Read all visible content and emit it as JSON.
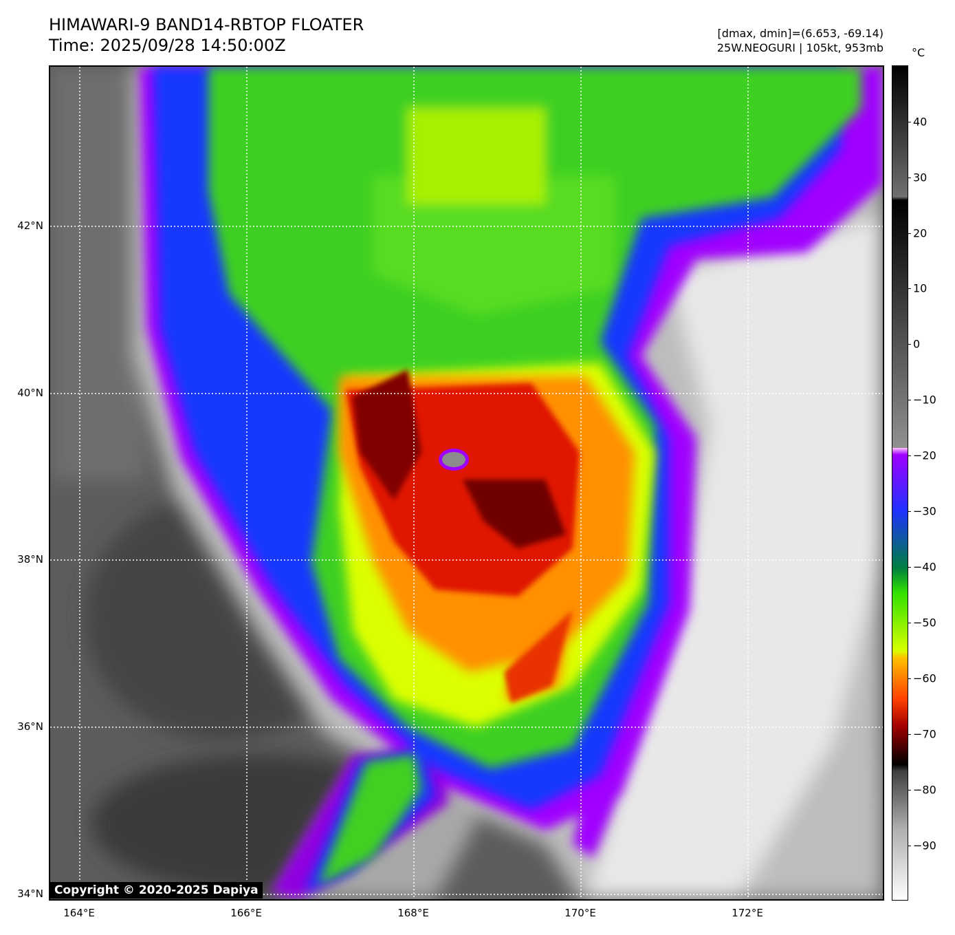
{
  "header": {
    "title_line1": "HIMAWARI-9 BAND14-RBTOP FLOATER",
    "title_line2": "Time: 2025/09/28 14:50:00Z",
    "range_info": "[dmax, dmin]=(6.653, -69.14)",
    "storm_info": "25W.NEOGURI | 105kt, 953mb"
  },
  "map": {
    "lat_labels": [
      "42°N",
      "40°N",
      "38°N",
      "36°N",
      "34°N"
    ],
    "lon_labels": [
      "164°E",
      "166°E",
      "168°E",
      "170°E",
      "172°E"
    ],
    "gridlines": "dotted white",
    "copyright": "Copyright © 2020-2025 Dapiya"
  },
  "colorbar": {
    "unit": "°C",
    "ticks": [
      "40",
      "30",
      "20",
      "10",
      "0",
      "−10",
      "−20",
      "−30",
      "−40",
      "−50",
      "−60",
      "−70",
      "−80",
      "−90"
    ],
    "range_min": -100,
    "range_max": 50
  },
  "colors": {
    "eye_core": "#6b0000",
    "red": "#d01000",
    "orange": "#ff8c00",
    "yellow": "#e0ff00",
    "green": "#30d000",
    "blue": "#1030ff",
    "purple": "#a000ff",
    "clear_gray": "#5a5a5a"
  }
}
